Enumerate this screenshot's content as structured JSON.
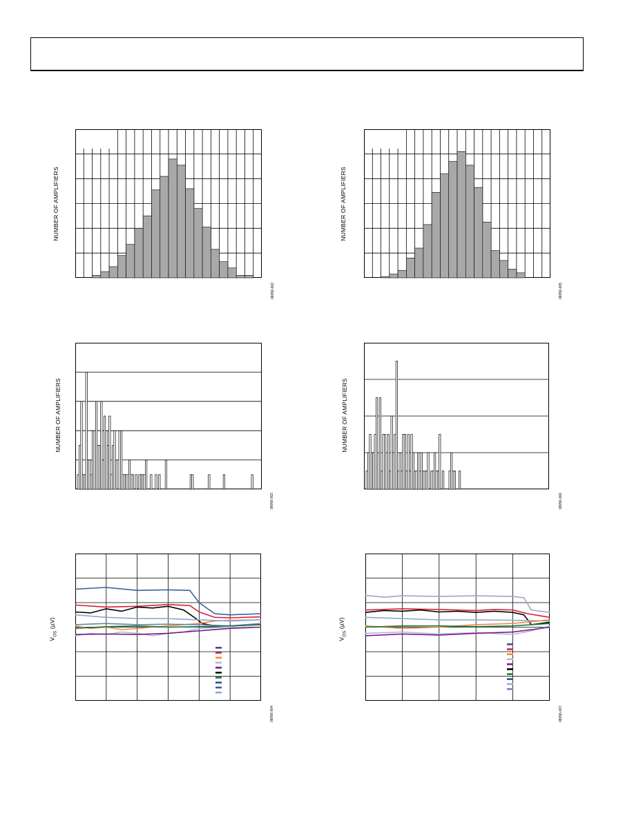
{
  "page": {
    "header_text": ""
  },
  "figures": [
    {
      "id": "fig-1",
      "ylabel": "NUMBER OF AMPLIFIERS",
      "code": "08056-002"
    },
    {
      "id": "fig-2",
      "ylabel": "NUMBER OF AMPLIFIERS",
      "code": "08056-005"
    },
    {
      "id": "fig-3",
      "ylabel": "NUMBER OF AMPLIFIERS",
      "code": "08056-003"
    },
    {
      "id": "fig-4",
      "ylabel": "NUMBER OF AMPLIFIERS",
      "code": "08056-006"
    },
    {
      "id": "fig-5",
      "ylabel_main": "V",
      "ylabel_sub": "OS",
      "ylabel_unit": " (µV)",
      "code": "08056-004"
    },
    {
      "id": "fig-6",
      "ylabel_main": "V",
      "ylabel_sub": "OS",
      "ylabel_unit": " (µV)",
      "code": "08056-007"
    }
  ],
  "chart_data": [
    {
      "type": "bar",
      "panel": "fig-1",
      "values": [
        0,
        1,
        2.5,
        4.5,
        9,
        13.5,
        20,
        25,
        35.5,
        41,
        48,
        45.5,
        36,
        28,
        20.5,
        11.5,
        6.5,
        4,
        1,
        1
      ],
      "ylim": [
        0,
        60
      ],
      "bar_color": "#a8a8a8"
    },
    {
      "type": "bar",
      "panel": "fig-2",
      "values": [
        0,
        0.5,
        1.5,
        3,
        8,
        12,
        21.5,
        34.5,
        42,
        47,
        51,
        45.5,
        36.5,
        22.5,
        11,
        7,
        3.5,
        2
      ],
      "ylim": [
        0,
        60
      ],
      "bar_color": "#a8a8a8"
    },
    {
      "type": "bar",
      "panel": "fig-3",
      "values": [
        1,
        3,
        6,
        1,
        1,
        8,
        2,
        2,
        1,
        4,
        4,
        6,
        3,
        3,
        6,
        2,
        5,
        4,
        3,
        5,
        1,
        3,
        4,
        2,
        0,
        4,
        4,
        1,
        1,
        1,
        1,
        2,
        1,
        1,
        0,
        1,
        0,
        1,
        1,
        1,
        1,
        2,
        0,
        0,
        1,
        0,
        0,
        1,
        0,
        1,
        0,
        0,
        0,
        2,
        0,
        0,
        0,
        0,
        0,
        0,
        0,
        0,
        0,
        0,
        0,
        0,
        0,
        0,
        1,
        1,
        0,
        0,
        0,
        0,
        0,
        0,
        0,
        0,
        0,
        1,
        0,
        0,
        0,
        0,
        0,
        0,
        0,
        0,
        1,
        0,
        0,
        0,
        0,
        0,
        0,
        0,
        0,
        0,
        0,
        0,
        0,
        0,
        0,
        0,
        0,
        1
      ],
      "ylim": [
        0,
        10
      ],
      "bar_color": "#ffffff"
    },
    {
      "type": "bar",
      "panel": "fig-4",
      "values": [
        1,
        2,
        3,
        2,
        2,
        3,
        5,
        2,
        5,
        1,
        3,
        3,
        2,
        3,
        1,
        4,
        2,
        3,
        7,
        1,
        2,
        1,
        3,
        3,
        1,
        3,
        1,
        3,
        2,
        1,
        1,
        2,
        1,
        2,
        1,
        1,
        1,
        2,
        0,
        1,
        1,
        2,
        1,
        1,
        3,
        0,
        1,
        0,
        0,
        0,
        1,
        2,
        1,
        1,
        0,
        0,
        1
      ],
      "ylim": [
        0,
        8
      ],
      "bar_color": "#ffffff"
    },
    {
      "type": "line",
      "panel": "fig-5",
      "ylim": [
        0,
        6
      ],
      "xlim": [
        0,
        6
      ],
      "series": [
        {
          "color": "#3a5d9c",
          "x": [
            0,
            1,
            2,
            3,
            3.7,
            4,
            4.5,
            5,
            6
          ],
          "y": [
            4.55,
            4.62,
            4.5,
            4.52,
            4.5,
            4.0,
            3.55,
            3.5,
            3.55
          ]
        },
        {
          "color": "#d81e3c",
          "x": [
            0,
            1,
            2,
            3,
            3.7,
            4,
            4.5,
            5,
            6
          ],
          "y": [
            3.9,
            3.82,
            3.85,
            3.92,
            3.88,
            3.62,
            3.4,
            3.38,
            3.42
          ]
        },
        {
          "color": "#000000",
          "x": [
            0,
            0.5,
            1,
            1.5,
            2,
            2.5,
            3,
            3.5,
            3.9,
            4.1,
            4.5,
            5,
            6
          ],
          "y": [
            3.62,
            3.58,
            3.75,
            3.65,
            3.82,
            3.78,
            3.85,
            3.7,
            3.35,
            3.15,
            3.05,
            3.05,
            3.1
          ]
        },
        {
          "color": "#f08a3c",
          "x": [
            0,
            0.5,
            1,
            1.5,
            2,
            2.5,
            3,
            4,
            4.5,
            5,
            6
          ],
          "y": [
            3.05,
            2.95,
            3.0,
            2.9,
            2.95,
            3.0,
            3.05,
            3.15,
            3.25,
            3.28,
            3.3
          ]
        },
        {
          "color": "#8ea6d4",
          "x": [
            0,
            1,
            2,
            3,
            4,
            5,
            6
          ],
          "y": [
            3.5,
            3.4,
            3.35,
            3.35,
            3.3,
            3.25,
            3.3
          ]
        },
        {
          "color": "#6d7fb0",
          "x": [
            0,
            1,
            2,
            3,
            4,
            5,
            6
          ],
          "y": [
            3.1,
            3.15,
            3.1,
            3.12,
            3.1,
            3.05,
            3.15
          ]
        },
        {
          "color": "#1a7a3c",
          "x": [
            0,
            1,
            2,
            3,
            4,
            5,
            6
          ],
          "y": [
            2.95,
            3.02,
            3.05,
            3.0,
            3.02,
            3.05,
            3.1
          ]
        },
        {
          "color": "#b0b8d8",
          "x": [
            0,
            0.5,
            1,
            1.5,
            2,
            2.5,
            3,
            3.5,
            4,
            5,
            6
          ],
          "y": [
            2.65,
            2.75,
            2.7,
            2.8,
            2.75,
            2.65,
            2.75,
            2.8,
            2.95,
            3.0,
            3.0
          ]
        },
        {
          "color": "#7a1a8a",
          "x": [
            0,
            1,
            2,
            3,
            4,
            5,
            6
          ],
          "y": [
            2.7,
            2.72,
            2.7,
            2.75,
            2.85,
            2.95,
            3.0
          ]
        }
      ],
      "legend_colors": [
        "#2e4f8e",
        "#d81e3c",
        "#f08a3c",
        "#b0b8d8",
        "#7a1a8a",
        "#000000",
        "#1a7a3c",
        "#2e4f8e",
        "#3a5d9c",
        "#8ea6d4"
      ]
    },
    {
      "type": "line",
      "panel": "fig-6",
      "ylim": [
        0,
        6
      ],
      "xlim": [
        0,
        5
      ],
      "series": [
        {
          "color": "#9aa8cc",
          "x": [
            0,
            0.5,
            1,
            2,
            3,
            4,
            4.3,
            4.5,
            5
          ],
          "y": [
            4.3,
            4.22,
            4.28,
            4.25,
            4.28,
            4.25,
            4.2,
            3.7,
            3.6
          ]
        },
        {
          "color": "#d81e3c",
          "x": [
            0,
            1,
            2,
            3,
            3.5,
            4,
            4.4,
            5
          ],
          "y": [
            3.7,
            3.75,
            3.72,
            3.68,
            3.72,
            3.7,
            3.55,
            3.4
          ]
        },
        {
          "color": "#000000",
          "x": [
            0,
            0.5,
            1,
            1.5,
            2,
            2.5,
            3,
            3.5,
            4,
            4.3,
            4.5,
            5
          ],
          "y": [
            3.6,
            3.68,
            3.65,
            3.7,
            3.62,
            3.65,
            3.6,
            3.65,
            3.6,
            3.5,
            3.1,
            3.2
          ]
        },
        {
          "color": "#8ea6d4",
          "x": [
            0,
            1,
            2,
            3,
            4,
            5
          ],
          "y": [
            3.4,
            3.35,
            3.3,
            3.3,
            3.28,
            3.25
          ]
        },
        {
          "color": "#f08a3c",
          "x": [
            0,
            1,
            2,
            3,
            4,
            5
          ],
          "y": [
            3.05,
            2.95,
            3.0,
            3.1,
            3.15,
            3.3
          ]
        },
        {
          "color": "#1a7a3c",
          "x": [
            0,
            1,
            2,
            3,
            4,
            5
          ],
          "y": [
            3.0,
            3.05,
            3.05,
            3.02,
            3.05,
            3.15
          ]
        },
        {
          "color": "#b0b8d8",
          "x": [
            0,
            1,
            2,
            3,
            4,
            4.5,
            5
          ],
          "y": [
            2.75,
            2.8,
            2.72,
            2.78,
            2.7,
            2.85,
            3.05
          ]
        },
        {
          "color": "#7a1a8a",
          "x": [
            0,
            1,
            2,
            3,
            4,
            5
          ],
          "y": [
            2.65,
            2.72,
            2.68,
            2.75,
            2.8,
            3.0
          ]
        }
      ],
      "legend_colors": [
        "#2e4f8e",
        "#d81e3c",
        "#f08a3c",
        "#b0b8d8",
        "#7a1a8a",
        "#000000",
        "#1a7a3c",
        "#2e4f8e",
        "#9aa8cc",
        "#6d7fb0"
      ]
    }
  ]
}
